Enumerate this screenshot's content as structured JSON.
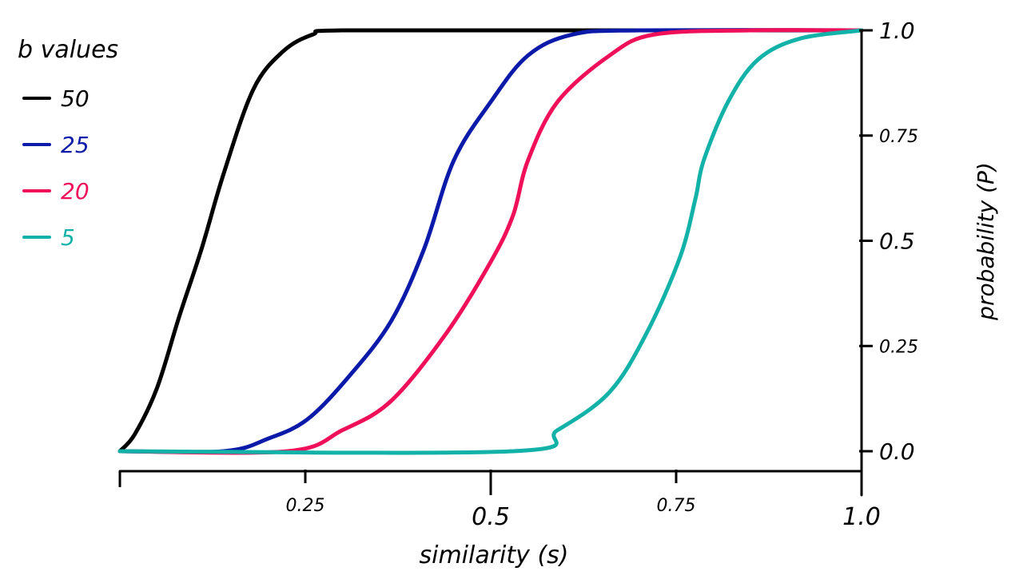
{
  "chart_data": {
    "type": "line",
    "title": "",
    "xlabel": "similarity (s)",
    "ylabel": "probability (P)",
    "xlim": [
      0,
      1.0
    ],
    "ylim": [
      0,
      1.0
    ],
    "x_ticks": [
      0.25,
      0.5,
      0.75,
      1.0
    ],
    "x_tick_labels": [
      "0.25",
      "0.5",
      "0.75",
      "1.0"
    ],
    "y_ticks": [
      0.0,
      0.25,
      0.5,
      0.75,
      1.0
    ],
    "y_tick_labels": [
      "0.0",
      "0.25",
      "0.5",
      "0.75",
      "1.0"
    ],
    "y_axis_side": "right",
    "grid": false,
    "legend": {
      "title": "b values",
      "placement": "top-left"
    },
    "series": [
      {
        "name": "50",
        "color": "#000000",
        "points": [
          [
            0,
            0
          ],
          [
            0.02,
            0.04
          ],
          [
            0.05,
            0.15
          ],
          [
            0.08,
            0.32
          ],
          [
            0.11,
            0.48
          ],
          [
            0.14,
            0.66
          ],
          [
            0.18,
            0.86
          ],
          [
            0.22,
            0.95
          ],
          [
            0.26,
            0.99
          ],
          [
            0.3,
            1.0
          ],
          [
            0.6,
            1.0
          ],
          [
            1.0,
            1.0
          ]
        ]
      },
      {
        "name": "25",
        "color": "#0b1aa8",
        "points": [
          [
            0,
            0
          ],
          [
            0.14,
            0.0
          ],
          [
            0.2,
            0.03
          ],
          [
            0.253,
            0.076
          ],
          [
            0.31,
            0.18
          ],
          [
            0.366,
            0.31
          ],
          [
            0.41,
            0.48
          ],
          [
            0.45,
            0.69
          ],
          [
            0.5,
            0.83
          ],
          [
            0.55,
            0.94
          ],
          [
            0.61,
            0.99
          ],
          [
            0.7,
            1.0
          ],
          [
            1.0,
            1.0
          ]
        ]
      },
      {
        "name": "20",
        "color": "#f0105a",
        "points": [
          [
            0,
            0
          ],
          [
            0.226,
            0.0
          ],
          [
            0.3,
            0.05
          ],
          [
            0.366,
            0.12
          ],
          [
            0.44,
            0.28
          ],
          [
            0.5,
            0.45
          ],
          [
            0.53,
            0.56
          ],
          [
            0.55,
            0.69
          ],
          [
            0.59,
            0.83
          ],
          [
            0.66,
            0.94
          ],
          [
            0.72,
            0.99
          ],
          [
            0.85,
            1.0
          ],
          [
            1.0,
            1.0
          ]
        ]
      },
      {
        "name": "5",
        "color": "#13b2a8",
        "points": [
          [
            0,
            0
          ],
          [
            0.53,
            0.0
          ],
          [
            0.59,
            0.05
          ],
          [
            0.66,
            0.14
          ],
          [
            0.71,
            0.28
          ],
          [
            0.755,
            0.46
          ],
          [
            0.776,
            0.6
          ],
          [
            0.787,
            0.69
          ],
          [
            0.82,
            0.83
          ],
          [
            0.86,
            0.93
          ],
          [
            0.916,
            0.98
          ],
          [
            1.0,
            1.0
          ]
        ]
      }
    ]
  }
}
